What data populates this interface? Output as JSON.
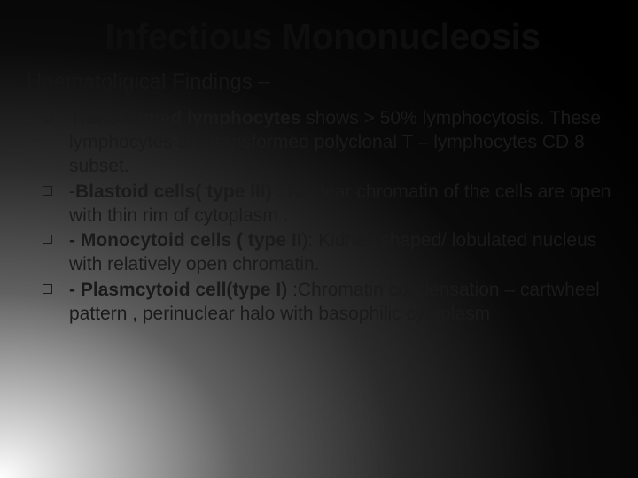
{
  "slide": {
    "title": "Infectious Mononucleosis",
    "subtitle": "Haematoligical Findings –",
    "title_fontsize": 41,
    "subtitle_fontsize": 24,
    "body_fontsize": 21,
    "title_color": "#0e0e0e",
    "text_color": "#1a1a1a",
    "background_gradient": {
      "type": "radial",
      "origin": "bottom-left",
      "stops": [
        "#ffffff",
        "#b0b0b0",
        "#606060",
        "#2a2a2a",
        "#0a0a0a",
        "#000000"
      ]
    },
    "bullet_marker": "hollow-square",
    "bullets": [
      {
        "bold": "Transformed lymphocytes ",
        "rest": "shows > 50% lymphocytosis. These  lymphocytes are transformed polyclonal  T – lymphocytes CD 8 subset."
      },
      {
        "pre": " -",
        "bold": "Blastoid cells( type III) ",
        "rest": ": Nuclear chromatin of the cells are open with thin rim of cytoplasm ."
      },
      {
        "bold": "- Monocytoid cells ( type II",
        "rest": "): Kidney shaped/ lobulated nucleus with relatively open chromatin."
      },
      {
        "bold": "- Plasmcytoid cell(type I) ",
        "rest": " :Chromatin condensation – cartwheel pattern , perinuclear halo  with basophilic cytoplasm"
      }
    ]
  }
}
